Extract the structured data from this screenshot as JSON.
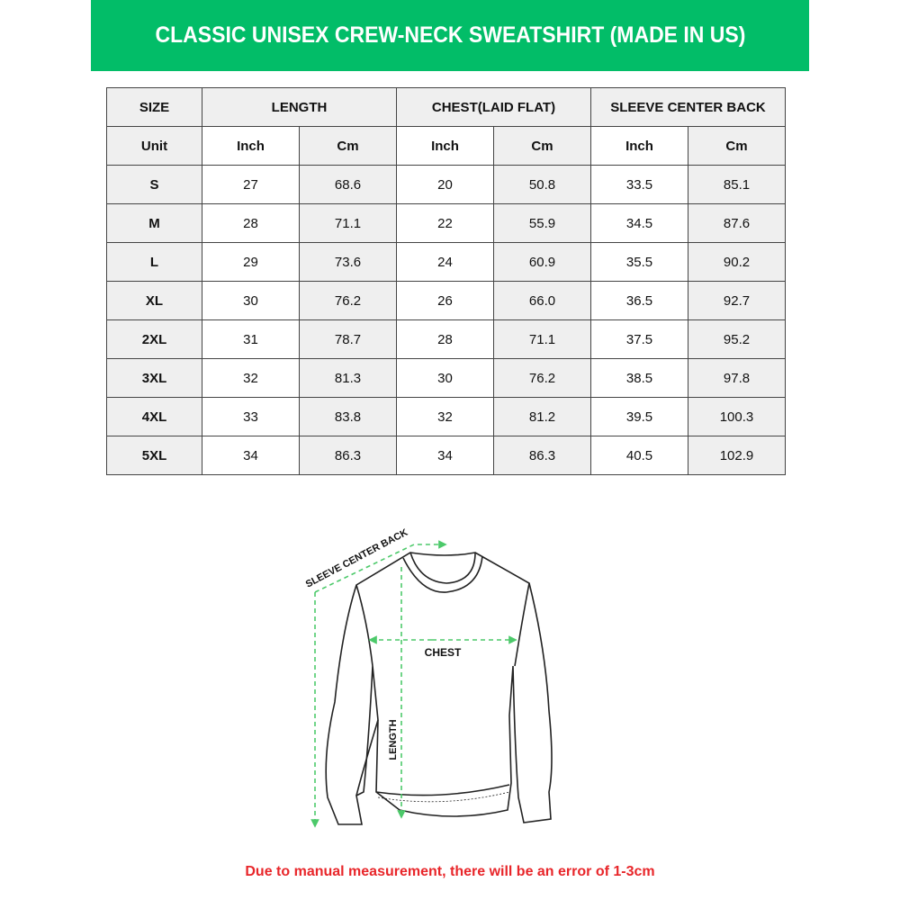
{
  "title": "CLASSIC UNISEX CREW-NECK SWEATSHIRT (MADE IN US)",
  "colors": {
    "banner": "#02bd68",
    "note": "#e8262a",
    "arrow": "#4cc96a"
  },
  "table": {
    "headers": [
      "SIZE",
      "LENGTH",
      "CHEST(LAID FLAT)",
      "SLEEVE CENTER BACK"
    ],
    "unit_label": "Unit",
    "units": [
      "Inch",
      "Cm",
      "Inch",
      "Cm",
      "Inch",
      "Cm"
    ],
    "rows": [
      [
        "S",
        "27",
        "68.6",
        "20",
        "50.8",
        "33.5",
        "85.1"
      ],
      [
        "M",
        "28",
        "71.1",
        "22",
        "55.9",
        "34.5",
        "87.6"
      ],
      [
        "L",
        "29",
        "73.6",
        "24",
        "60.9",
        "35.5",
        "90.2"
      ],
      [
        "XL",
        "30",
        "76.2",
        "26",
        "66.0",
        "36.5",
        "92.7"
      ],
      [
        "2XL",
        "31",
        "78.7",
        "28",
        "71.1",
        "37.5",
        "95.2"
      ],
      [
        "3XL",
        "32",
        "81.3",
        "30",
        "76.2",
        "38.5",
        "97.8"
      ],
      [
        "4XL",
        "33",
        "83.8",
        "32",
        "81.2",
        "39.5",
        "100.3"
      ],
      [
        "5XL",
        "34",
        "86.3",
        "34",
        "86.3",
        "40.5",
        "102.9"
      ]
    ]
  },
  "diagram": {
    "sleeve_label": "SLEEVE CENTER BACK",
    "chest_label": "CHEST",
    "length_label": "LENGTH"
  },
  "note": "Due to manual measurement, there will be an error of 1-3cm"
}
